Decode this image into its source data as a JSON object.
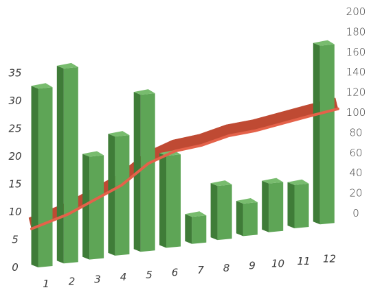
{
  "chart_data": {
    "type": "bar",
    "categories": [
      "1",
      "2",
      "3",
      "4",
      "5",
      "6",
      "7",
      "8",
      "9",
      "10",
      "11",
      "12"
    ],
    "series": [
      {
        "type": "bar",
        "axis": "left",
        "values": [
          33,
          36,
          19,
          22,
          29,
          17,
          5,
          10,
          6,
          9,
          8,
          33
        ]
      },
      {
        "type": "line",
        "axis": "right",
        "values": [
          5,
          25,
          45,
          65,
          95,
          112,
          120,
          133,
          140,
          150,
          160,
          170
        ]
      }
    ],
    "left_axis": {
      "ticks": [
        "0",
        "5",
        "10",
        "15",
        "20",
        "25",
        "30",
        "35"
      ],
      "ylim": [
        0,
        35
      ]
    },
    "right_axis": {
      "ticks": [
        "0",
        "20",
        "40",
        "60",
        "80",
        "100",
        "120",
        "140",
        "160",
        "180",
        "200"
      ],
      "ylim": [
        0,
        200
      ]
    },
    "colors": {
      "bar_front": "#5ea556",
      "bar_side": "#3f7c38",
      "bar_top": "#78bc6e",
      "line": "#e4624a",
      "ribbon": "#bf4a33"
    },
    "grid": false,
    "legend": "none"
  }
}
